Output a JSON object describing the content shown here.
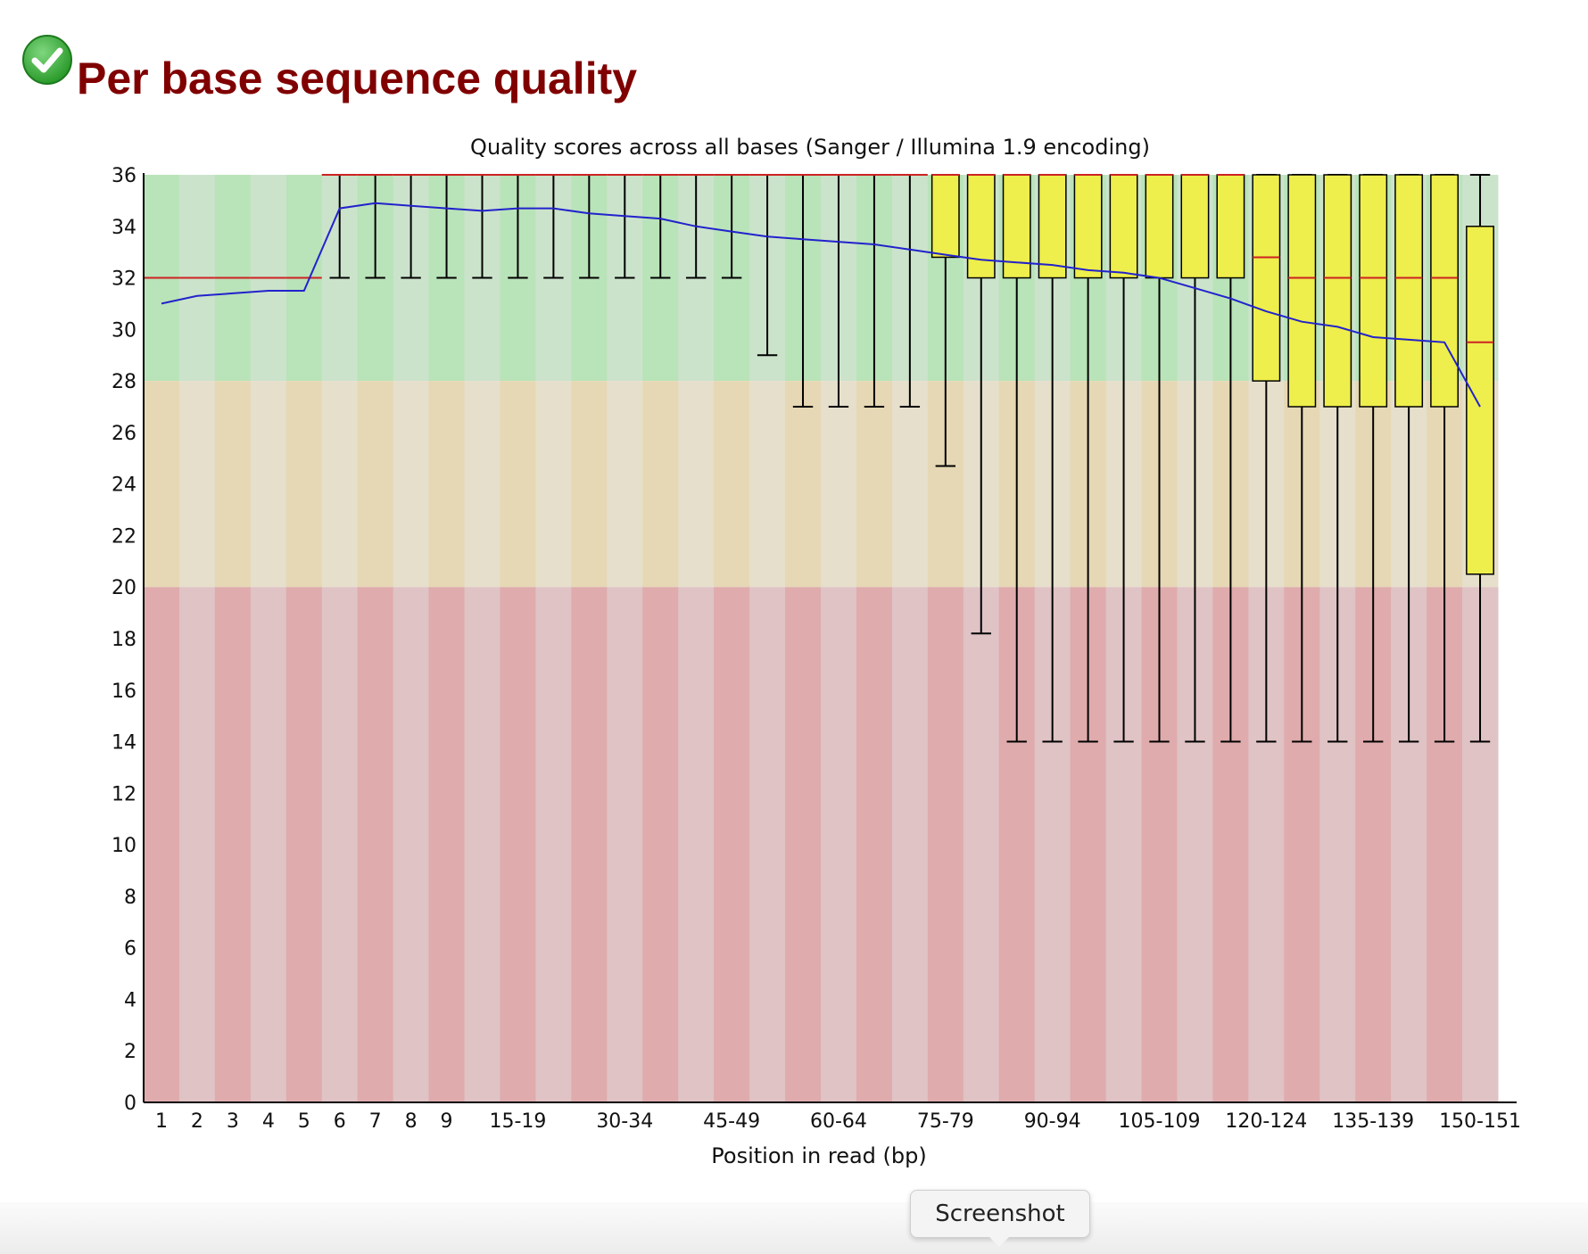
{
  "module": {
    "status_icon": "pass-check-icon",
    "status_color": "#33aa33",
    "title": "Per base sequence quality",
    "title_color": "#800000"
  },
  "tooltip": {
    "label": "Screenshot"
  },
  "chart_data": {
    "type": "boxplot",
    "title": "Quality scores across all bases (Sanger / Illumina 1.9 encoding)",
    "xlabel": "Position in read (bp)",
    "ylabel": "",
    "ylim": [
      0,
      36
    ],
    "yticks": [
      0,
      2,
      4,
      6,
      8,
      10,
      12,
      14,
      16,
      18,
      20,
      22,
      24,
      26,
      28,
      30,
      32,
      34,
      36
    ],
    "zones": [
      {
        "from": 28,
        "to": 36,
        "name": "good",
        "colors": [
          "#b9e3b9",
          "#cbe3cb"
        ]
      },
      {
        "from": 20,
        "to": 28,
        "name": "reasonable",
        "colors": [
          "#e6d8b4",
          "#e6dfcb"
        ]
      },
      {
        "from": 0,
        "to": 20,
        "name": "poor",
        "colors": [
          "#dfabad",
          "#dfc3c5"
        ]
      }
    ],
    "colors": {
      "box": "#eeee4c",
      "median": "#cc2222",
      "mean_line": "#2222cc",
      "whisker": "#000000"
    },
    "categories": [
      "1",
      "2",
      "3",
      "4",
      "5",
      "6",
      "7",
      "8",
      "9",
      "10-14",
      "15-19",
      "20-24",
      "25-29",
      "30-34",
      "35-39",
      "40-44",
      "45-49",
      "50-54",
      "55-59",
      "60-64",
      "65-69",
      "70-74",
      "75-79",
      "80-84",
      "85-89",
      "90-94",
      "95-99",
      "100-104",
      "105-109",
      "110-114",
      "115-119",
      "120-124",
      "125-129",
      "130-134",
      "135-139",
      "140-144",
      "145-149",
      "150-151"
    ],
    "xtick_labels": [
      "1",
      "2",
      "3",
      "4",
      "5",
      "6",
      "7",
      "8",
      "9",
      "",
      "15-19",
      "",
      "",
      "30-34",
      "",
      "",
      "45-49",
      "",
      "",
      "60-64",
      "",
      "",
      "75-79",
      "",
      "",
      "90-94",
      "",
      "",
      "105-109",
      "",
      "",
      "120-124",
      "",
      "",
      "135-139",
      "",
      "",
      "150-151"
    ],
    "series": [
      {
        "name": "mean",
        "values": [
          31.0,
          31.3,
          31.4,
          31.5,
          31.5,
          34.7,
          34.9,
          34.8,
          34.7,
          34.6,
          34.7,
          34.7,
          34.5,
          34.4,
          34.3,
          34.0,
          33.8,
          33.6,
          33.5,
          33.4,
          33.3,
          33.1,
          32.9,
          32.7,
          32.6,
          32.5,
          32.3,
          32.2,
          32.0,
          31.6,
          31.2,
          30.7,
          30.3,
          30.1,
          29.7,
          29.6,
          29.5,
          27.0
        ]
      },
      {
        "name": "median",
        "values": [
          32,
          32,
          32,
          32,
          32,
          36,
          36,
          36,
          36,
          36,
          36,
          36,
          36,
          36,
          36,
          36,
          36,
          36,
          36,
          36,
          36,
          36,
          36,
          36,
          36,
          36,
          36,
          36,
          36,
          36,
          36,
          32.8,
          32,
          32,
          32,
          32,
          32,
          29.5
        ]
      },
      {
        "name": "q1",
        "values": [
          32,
          32,
          32,
          32,
          32,
          36,
          36,
          36,
          36,
          36,
          36,
          36,
          36,
          36,
          36,
          36,
          36,
          36,
          36,
          36,
          36,
          36,
          32.8,
          32,
          32,
          32,
          32,
          32,
          32,
          32,
          32,
          28,
          27,
          27,
          27,
          27,
          27,
          20.5
        ]
      },
      {
        "name": "q3",
        "values": [
          32,
          32,
          32,
          32,
          32,
          36,
          36,
          36,
          36,
          36,
          36,
          36,
          36,
          36,
          36,
          36,
          36,
          36,
          36,
          36,
          36,
          36,
          36,
          36,
          36,
          36,
          36,
          36,
          36,
          36,
          36,
          36,
          36,
          36,
          36,
          36,
          36,
          34
        ]
      },
      {
        "name": "whisker_low",
        "values": [
          32,
          32,
          32,
          32,
          32,
          32,
          32,
          32,
          32,
          32,
          32,
          32,
          32,
          32,
          32,
          32,
          32,
          29,
          27,
          27,
          27,
          27,
          24.7,
          18.2,
          14,
          14,
          14,
          14,
          14,
          14,
          14,
          14,
          14,
          14,
          14,
          14,
          14,
          14
        ]
      },
      {
        "name": "whisker_high",
        "values": [
          32,
          32,
          32,
          32,
          32,
          36,
          36,
          36,
          36,
          36,
          36,
          36,
          36,
          36,
          36,
          36,
          36,
          36,
          36,
          36,
          36,
          36,
          36,
          36,
          36,
          36,
          36,
          36,
          36,
          36,
          36,
          36,
          36,
          36,
          36,
          36,
          36,
          36
        ]
      }
    ]
  }
}
